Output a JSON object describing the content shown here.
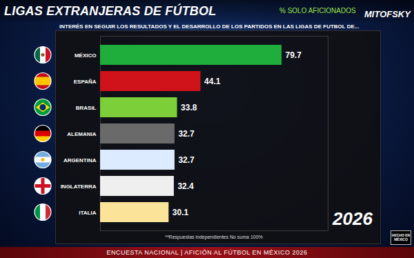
{
  "chart_data": {
    "type": "bar",
    "orientation": "horizontal",
    "title": "LIGAS EXTRANJERAS DE FÚTBOL",
    "subtitle": "INTERÉS EN SEGUIR LOS RESULTADOS Y EL DESARROLLO DE LOS PARTIDOS EN LAS LIGAS DE FUTBOL DE...",
    "categories": [
      "MÉXICO",
      "ESPAÑA",
      "BRASIL",
      "ALEMANIA",
      "ARGENTINA",
      "INGLATERRA",
      "ITALIA"
    ],
    "values": [
      79.7,
      44.1,
      33.8,
      32.7,
      32.7,
      32.4,
      30.1
    ],
    "colors": [
      "#1fae3c",
      "#d0121a",
      "#7ccf38",
      "#6a6a6a",
      "#dcebff",
      "#efefef",
      "#fbe49a"
    ],
    "xlim": [
      0,
      100
    ],
    "grid": false,
    "data_labels": true,
    "tick_labels": "y",
    "annotations": [
      "% SOLO AFICIONADOS",
      "MITOFSKY",
      "2026",
      "**Respuestas independientes No suma 100%",
      "ENCUESTA NACIONAL | AFICIÓN AL FÚTBOL EN MÉXICO 2026",
      "HECHO EN MÉXICO"
    ]
  }
}
